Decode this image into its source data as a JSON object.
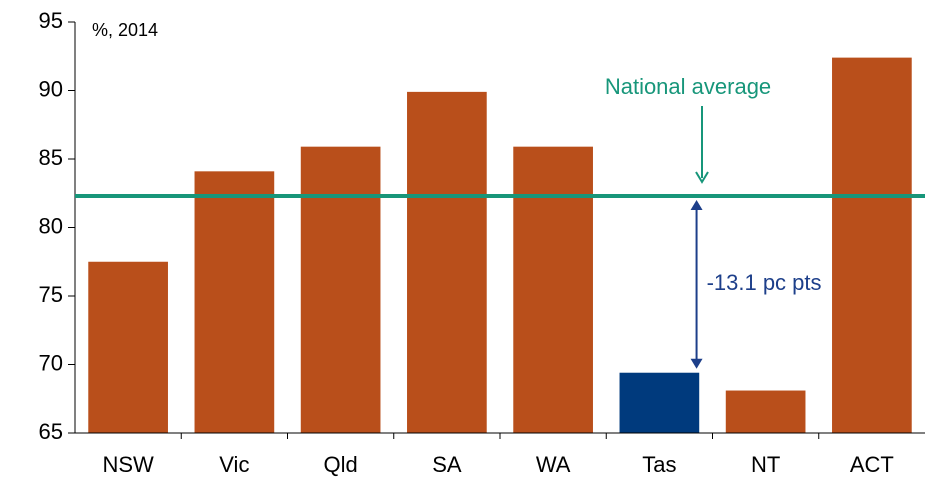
{
  "chart_data": {
    "type": "bar",
    "subtitle": "%, 2014",
    "categories": [
      "NSW",
      "Vic",
      "Qld",
      "SA",
      "WA",
      "Tas",
      "NT",
      "ACT"
    ],
    "values": [
      77.5,
      84.1,
      85.9,
      89.9,
      85.9,
      69.4,
      68.1,
      92.4
    ],
    "colors": [
      "#b94f1b",
      "#b94f1b",
      "#b94f1b",
      "#b94f1b",
      "#b94f1b",
      "#003a7d",
      "#b94f1b",
      "#b94f1b"
    ],
    "ylim": [
      65,
      95
    ],
    "yticks": [
      65,
      70,
      75,
      80,
      85,
      90,
      95
    ],
    "reference_line": {
      "label": "National average",
      "value": 82.3,
      "color": "#17967a"
    },
    "annotation": {
      "text": "-13.1 pc pts",
      "color": "#1d3f8a"
    }
  }
}
